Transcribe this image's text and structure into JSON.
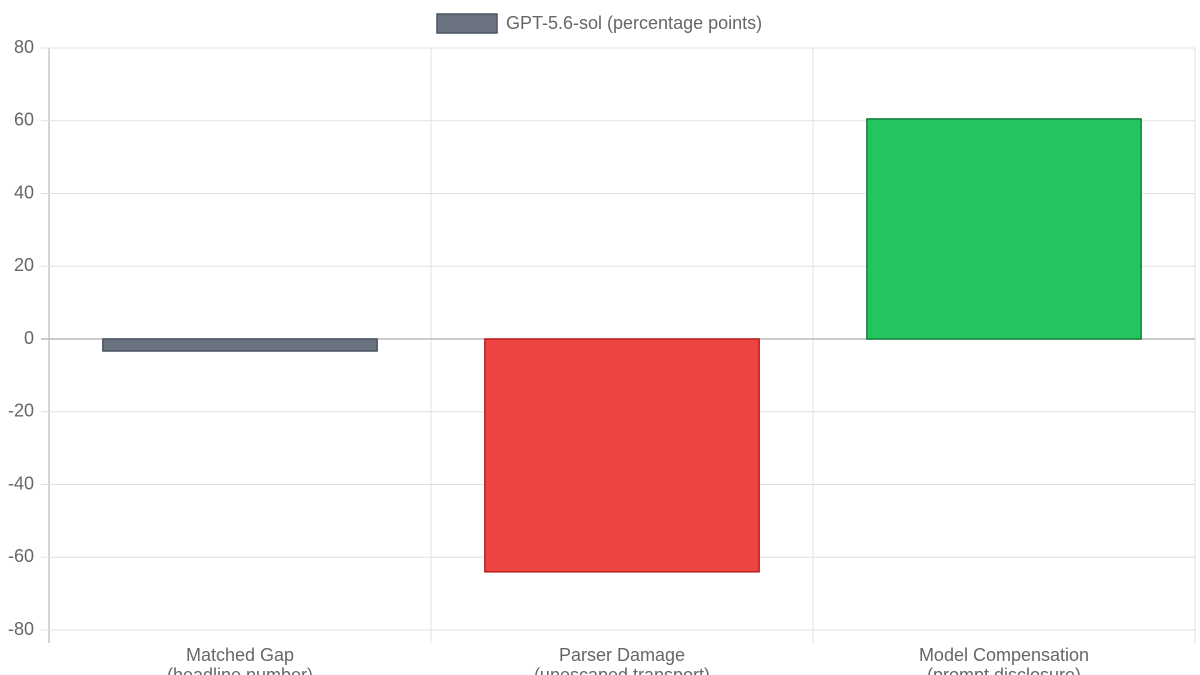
{
  "chart_data": {
    "type": "bar",
    "legend": "GPT-5.6-sol (percentage points)",
    "legend_color": "#6b7280",
    "legend_border_color": "#4b5563",
    "categories": [
      [
        "Matched Gap",
        "(headline number)"
      ],
      [
        "Parser Damage",
        "(unescaped transport)"
      ],
      [
        "Model Compensation",
        "(prompt disclosure)"
      ]
    ],
    "values": [
      -3.3,
      -64,
      60.5
    ],
    "colors": [
      "#6b7280",
      "#ef4444",
      "#22c55e"
    ],
    "border_colors": [
      "#4b5563",
      "#b91c1c",
      "#15803d"
    ],
    "ylim": [
      -80,
      80
    ],
    "yticks": [
      -80,
      -60,
      -40,
      -20,
      0,
      20,
      40,
      60,
      80
    ],
    "grid": true
  }
}
